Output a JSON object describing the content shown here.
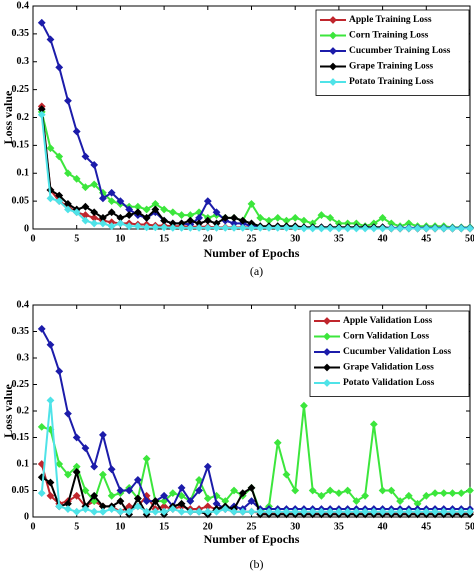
{
  "chart_data": [
    {
      "type": "line",
      "caption": "(a)",
      "xlabel": "Number of Epochs",
      "ylabel": "Loss value",
      "x": [
        1,
        2,
        3,
        4,
        5,
        6,
        7,
        8,
        9,
        10,
        11,
        12,
        13,
        14,
        15,
        16,
        17,
        18,
        19,
        20,
        21,
        22,
        23,
        24,
        25,
        26,
        27,
        28,
        29,
        30,
        31,
        32,
        33,
        34,
        35,
        36,
        37,
        38,
        39,
        40,
        41,
        42,
        43,
        44,
        45,
        46,
        47,
        48,
        49,
        50
      ],
      "xlim": [
        0,
        50
      ],
      "xticks": [
        0,
        5,
        10,
        15,
        20,
        25,
        30,
        35,
        40,
        45,
        50
      ],
      "ylim": [
        0,
        0.4
      ],
      "yticks": [
        0,
        0.05,
        0.1,
        0.15,
        0.2,
        0.25,
        0.3,
        0.35,
        0.4
      ],
      "legend": "upper right",
      "series": [
        {
          "name": "Apple Training Loss",
          "color": "#c0262d",
          "values": [
            0.22,
            0.07,
            0.05,
            0.04,
            0.03,
            0.025,
            0.02,
            0.015,
            0.012,
            0.01,
            0.01,
            0.008,
            0.008,
            0.006,
            0.006,
            0.005,
            0.005,
            0.004,
            0.004,
            0.004,
            0.003,
            0.003,
            0.003,
            0.003,
            0.003,
            0.003,
            0.003,
            0.003,
            0.003,
            0.003,
            0.002,
            0.002,
            0.002,
            0.002,
            0.002,
            0.002,
            0.002,
            0.002,
            0.002,
            0.002,
            0.001,
            0.001,
            0.001,
            0.001,
            0.001,
            0.001,
            0.001,
            0.001,
            0.001,
            0.001
          ]
        },
        {
          "name": "Corn Training Loss",
          "color": "#3ce63c",
          "values": [
            0.21,
            0.145,
            0.13,
            0.1,
            0.09,
            0.075,
            0.08,
            0.065,
            0.05,
            0.045,
            0.04,
            0.04,
            0.035,
            0.045,
            0.035,
            0.03,
            0.025,
            0.025,
            0.03,
            0.02,
            0.025,
            0.02,
            0.02,
            0.015,
            0.045,
            0.02,
            0.015,
            0.02,
            0.015,
            0.02,
            0.015,
            0.01,
            0.025,
            0.02,
            0.01,
            0.01,
            0.01,
            0.005,
            0.01,
            0.02,
            0.01,
            0.005,
            0.01,
            0.005,
            0.005,
            0.005,
            0.005,
            0.003,
            0.003,
            0.003
          ]
        },
        {
          "name": "Cucumber Training Loss",
          "color": "#1c1caa",
          "values": [
            0.37,
            0.34,
            0.29,
            0.23,
            0.175,
            0.13,
            0.115,
            0.055,
            0.065,
            0.05,
            0.035,
            0.025,
            0.02,
            0.03,
            0.015,
            0.01,
            0.01,
            0.008,
            0.02,
            0.05,
            0.03,
            0.015,
            0.01,
            0.01,
            0.005,
            0.004,
            0.004,
            0.004,
            0.004,
            0.004,
            0.003,
            0.003,
            0.003,
            0.003,
            0.003,
            0.003,
            0.003,
            0.003,
            0.003,
            0.003,
            0.002,
            0.002,
            0.002,
            0.002,
            0.002,
            0.002,
            0.002,
            0.002,
            0.002,
            0.002
          ]
        },
        {
          "name": "Grape Training Loss",
          "color": "#000000",
          "values": [
            0.215,
            0.07,
            0.06,
            0.045,
            0.035,
            0.04,
            0.03,
            0.02,
            0.03,
            0.02,
            0.025,
            0.03,
            0.02,
            0.035,
            0.015,
            0.01,
            0.01,
            0.015,
            0.01,
            0.015,
            0.01,
            0.02,
            0.02,
            0.015,
            0.01,
            0.005,
            0.005,
            0.005,
            0.005,
            0.005,
            0.003,
            0.003,
            0.003,
            0.003,
            0.003,
            0.003,
            0.003,
            0.003,
            0.003,
            0.003,
            0.001,
            0.001,
            0.001,
            0.001,
            0.001,
            0.001,
            0.001,
            0.001,
            0.001,
            0.001
          ]
        },
        {
          "name": "Potato Training Loss",
          "color": "#4fe3e8",
          "values": [
            0.205,
            0.055,
            0.05,
            0.035,
            0.03,
            0.015,
            0.01,
            0.01,
            0.005,
            0.01,
            0.005,
            0.005,
            0.003,
            0.003,
            0.003,
            0.002,
            0.002,
            0.002,
            0.002,
            0.002,
            0.002,
            0.002,
            0.002,
            0.002,
            0.002,
            0.002,
            0.002,
            0.002,
            0.002,
            0.002,
            0.001,
            0.001,
            0.001,
            0.001,
            0.001,
            0.001,
            0.001,
            0.001,
            0.001,
            0.001,
            0.001,
            0.001,
            0.001,
            0.001,
            0.001,
            0.001,
            0.001,
            0.001,
            0.001,
            0.001
          ]
        }
      ]
    },
    {
      "type": "line",
      "caption": "(b)",
      "xlabel": "Number of Epochs",
      "ylabel": "Loss value",
      "x": [
        1,
        2,
        3,
        4,
        5,
        6,
        7,
        8,
        9,
        10,
        11,
        12,
        13,
        14,
        15,
        16,
        17,
        18,
        19,
        20,
        21,
        22,
        23,
        24,
        25,
        26,
        27,
        28,
        29,
        30,
        31,
        32,
        33,
        34,
        35,
        36,
        37,
        38,
        39,
        40,
        41,
        42,
        43,
        44,
        45,
        46,
        47,
        48,
        49,
        50
      ],
      "xlim": [
        0,
        50
      ],
      "xticks": [
        0,
        5,
        10,
        15,
        20,
        25,
        30,
        35,
        40,
        45,
        50
      ],
      "ylim": [
        0,
        0.4
      ],
      "yticks": [
        0,
        0.05,
        0.1,
        0.15,
        0.2,
        0.25,
        0.3,
        0.35,
        0.4
      ],
      "legend": "upper right",
      "series": [
        {
          "name": "Apple Validation Loss",
          "color": "#c0262d",
          "values": [
            0.1,
            0.04,
            0.025,
            0.03,
            0.04,
            0.02,
            0.03,
            0.02,
            0.02,
            0.01,
            0.02,
            0.02,
            0.04,
            0.015,
            0.02,
            0.015,
            0.02,
            0.015,
            0.015,
            0.02,
            0.015,
            0.015,
            0.01,
            0.01,
            0.01,
            0.008,
            0.008,
            0.008,
            0.008,
            0.008,
            0.008,
            0.008,
            0.008,
            0.008,
            0.008,
            0.008,
            0.008,
            0.008,
            0.008,
            0.008,
            0.008,
            0.008,
            0.008,
            0.008,
            0.008,
            0.008,
            0.008,
            0.008,
            0.008,
            0.008
          ]
        },
        {
          "name": "Corn Validation Loss",
          "color": "#3ce63c",
          "values": [
            0.17,
            0.165,
            0.1,
            0.08,
            0.095,
            0.05,
            0.03,
            0.08,
            0.04,
            0.045,
            0.055,
            0.035,
            0.11,
            0.03,
            0.03,
            0.045,
            0.04,
            0.03,
            0.07,
            0.035,
            0.04,
            0.03,
            0.05,
            0.04,
            0.055,
            0.01,
            0.02,
            0.14,
            0.08,
            0.05,
            0.21,
            0.05,
            0.04,
            0.05,
            0.045,
            0.05,
            0.03,
            0.04,
            0.175,
            0.05,
            0.05,
            0.03,
            0.04,
            0.025,
            0.04,
            0.045,
            0.045,
            0.045,
            0.045,
            0.05
          ]
        },
        {
          "name": "Cucumber Validation Loss",
          "color": "#1c1caa",
          "values": [
            0.355,
            0.325,
            0.275,
            0.195,
            0.15,
            0.13,
            0.095,
            0.155,
            0.09,
            0.05,
            0.05,
            0.07,
            0.03,
            0.03,
            0.04,
            0.02,
            0.055,
            0.03,
            0.05,
            0.095,
            0.025,
            0.015,
            0.02,
            0.015,
            0.03,
            0.015,
            0.015,
            0.015,
            0.015,
            0.015,
            0.015,
            0.015,
            0.015,
            0.015,
            0.015,
            0.015,
            0.015,
            0.015,
            0.015,
            0.015,
            0.015,
            0.015,
            0.015,
            0.015,
            0.015,
            0.015,
            0.015,
            0.015,
            0.015,
            0.015
          ]
        },
        {
          "name": "Grape Validation Loss",
          "color": "#000000",
          "values": [
            0.075,
            0.065,
            0.02,
            0.025,
            0.085,
            0.02,
            0.04,
            0.02,
            0.02,
            0.03,
            0.005,
            0.035,
            0.005,
            0.03,
            0.005,
            0.02,
            0.025,
            0.01,
            0.01,
            0.005,
            0.015,
            0.02,
            0.015,
            0.045,
            0.055,
            0.005,
            0.005,
            0.005,
            0.005,
            0.005,
            0.005,
            0.005,
            0.005,
            0.005,
            0.005,
            0.005,
            0.005,
            0.005,
            0.005,
            0.005,
            0.005,
            0.005,
            0.005,
            0.005,
            0.005,
            0.005,
            0.005,
            0.005,
            0.005,
            0.005
          ]
        },
        {
          "name": "Potato Validation Loss",
          "color": "#4fe3e8",
          "values": [
            0.045,
            0.22,
            0.02,
            0.015,
            0.01,
            0.015,
            0.01,
            0.01,
            0.015,
            0.01,
            0.01,
            0.02,
            0.01,
            0.01,
            0.01,
            0.015,
            0.01,
            0.01,
            0.01,
            0.01,
            0.01,
            0.015,
            0.01,
            0.01,
            0.01,
            0.01,
            0.01,
            0.01,
            0.01,
            0.01,
            0.01,
            0.01,
            0.01,
            0.01,
            0.01,
            0.01,
            0.01,
            0.01,
            0.01,
            0.01,
            0.01,
            0.01,
            0.01,
            0.01,
            0.01,
            0.01,
            0.01,
            0.01,
            0.01,
            0.01
          ]
        }
      ]
    }
  ]
}
